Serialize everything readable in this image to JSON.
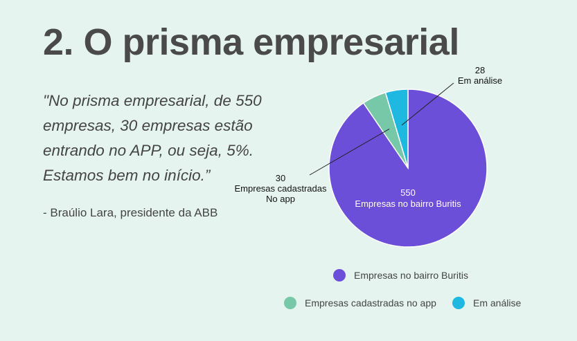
{
  "title": "2. O prisma empresarial",
  "quote": "\"No prisma empresarial, de 550 empresas, 30 empresas estão entrando no APP, ou seja, 5%. Estamos bem no início.”",
  "author": "- Braúlio Lara, presidente da ABB",
  "chart_data": {
    "type": "pie",
    "slices": [
      {
        "label_lines": [
          "550",
          "Empresas no bairro Buritis"
        ],
        "value": 550,
        "color": "#6c4fd8",
        "legend": "Empresas no bairro Buritis"
      },
      {
        "label_lines": [
          "30",
          "Empresas cadastradas",
          "No app"
        ],
        "value": 30,
        "color": "#76c8a8",
        "legend": "Empresas cadastradas no app"
      },
      {
        "label_lines": [
          "28",
          "Em análise"
        ],
        "value": 28,
        "color": "#1eb8e0",
        "legend": "Em análise"
      }
    ]
  }
}
